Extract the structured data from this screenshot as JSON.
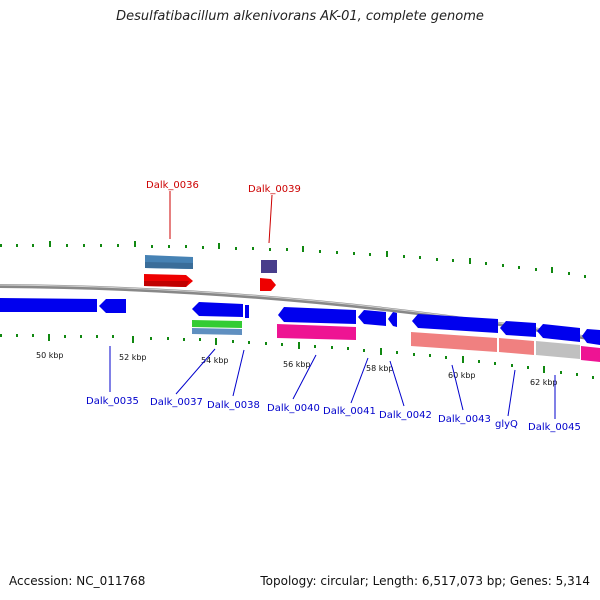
{
  "title": "Desulfatibacillum alkenivorans AK-01, complete genome",
  "footer": {
    "accession": "Accession: NC_011768",
    "topology": "Topology: circular; Length: 6,517,073 bp; Genes: 5,314"
  },
  "colors": {
    "forward_cds": "#0000ee",
    "reverse_cds": "#0000ee",
    "red_label": "#cc0000",
    "blue_label": "#0000cc",
    "tick": "#118811",
    "backbone": "#888888"
  },
  "scale_labels": [
    "50 kbp",
    "52 kbp",
    "54 kbp",
    "56 kbp",
    "58 kbp",
    "60 kbp",
    "62 kbp"
  ],
  "top_gene_labels": [
    "Dalk_0036",
    "Dalk_0039"
  ],
  "bottom_gene_labels": [
    "Dalk_0035",
    "Dalk_0037",
    "Dalk_0038",
    "Dalk_0040",
    "Dalk_0041",
    "Dalk_0042",
    "Dalk_0043",
    "glyQ",
    "Dalk_0045"
  ]
}
